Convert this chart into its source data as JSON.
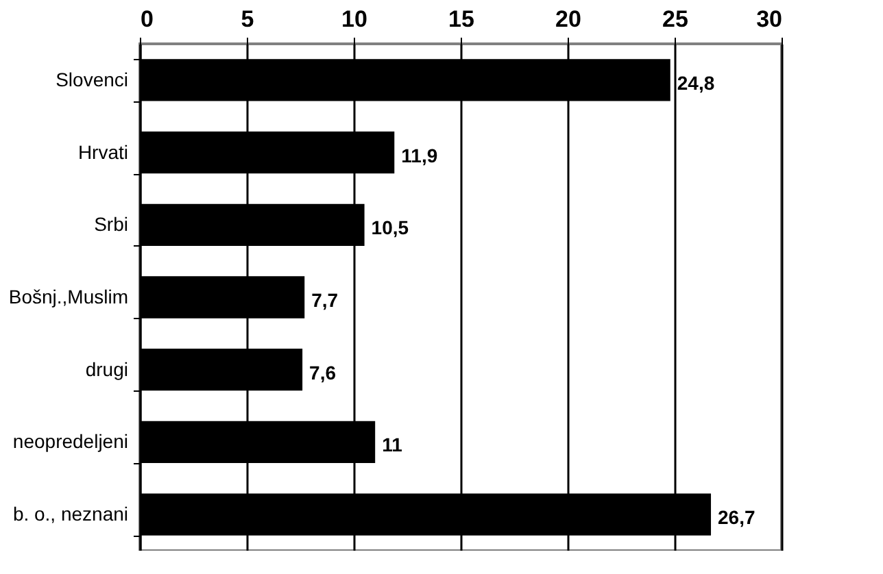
{
  "chart_data": {
    "type": "bar",
    "orientation": "horizontal",
    "categories": [
      "Slovenci",
      "Hrvati",
      "Srbi",
      "Bošnj.,Muslim",
      "drugi",
      "neopredeljeni",
      "b. o., neznani"
    ],
    "values": [
      24.8,
      11.9,
      10.5,
      7.7,
      7.6,
      11,
      26.7
    ],
    "value_labels": [
      "24,8",
      "11,9",
      "10,5",
      "7,7",
      "7,6",
      "11",
      "26,7"
    ],
    "color": "#000000",
    "xlim": [
      0,
      30
    ],
    "xticks": [
      0,
      5,
      10,
      15,
      20,
      25,
      30
    ],
    "grid": "x"
  }
}
